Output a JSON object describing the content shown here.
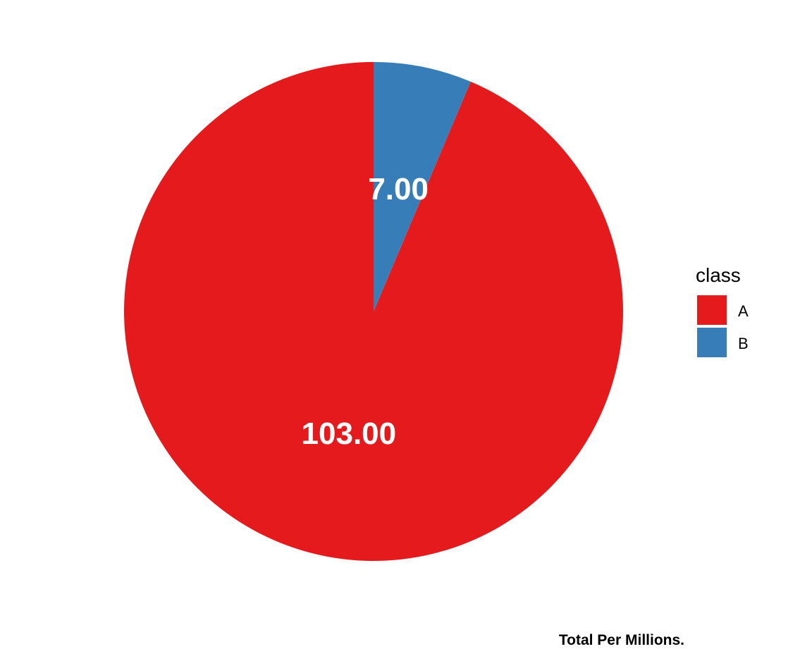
{
  "chart_data": {
    "type": "pie",
    "categories": [
      "A",
      "B"
    ],
    "values": [
      103.0,
      7.0
    ],
    "value_labels": [
      "103.00",
      "7.00"
    ],
    "colors": [
      "#e41a1c",
      "#377eb8"
    ],
    "legend": {
      "title": "class",
      "entries": [
        "A",
        "B"
      ],
      "placement": "right"
    },
    "caption": "Total Per Millions.",
    "start_angle": "12 o'clock",
    "direction": "counterclockwise"
  }
}
